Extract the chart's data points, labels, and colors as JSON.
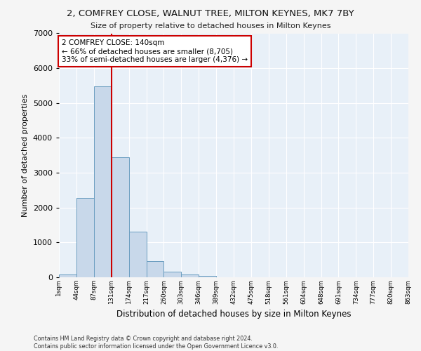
{
  "title": "2, COMFREY CLOSE, WALNUT TREE, MILTON KEYNES, MK7 7BY",
  "subtitle": "Size of property relative to detached houses in Milton Keynes",
  "xlabel": "Distribution of detached houses by size in Milton Keynes",
  "ylabel": "Number of detached properties",
  "bar_values": [
    75,
    2280,
    5480,
    3440,
    1310,
    470,
    155,
    80,
    50,
    0,
    0,
    0,
    0,
    0,
    0,
    0,
    0,
    0,
    0
  ],
  "bar_color": "#c8d8ea",
  "bar_edge_color": "#6a9dc0",
  "x_labels": [
    "1sqm",
    "44sqm",
    "87sqm",
    "131sqm",
    "174sqm",
    "217sqm",
    "260sqm",
    "303sqm",
    "346sqm",
    "389sqm",
    "432sqm",
    "475sqm",
    "518sqm",
    "561sqm",
    "604sqm",
    "648sqm",
    "691sqm",
    "734sqm",
    "777sqm",
    "820sqm",
    "863sqm"
  ],
  "ylim": [
    0,
    7000
  ],
  "yticks": [
    0,
    1000,
    2000,
    3000,
    4000,
    5000,
    6000,
    7000
  ],
  "vline_color": "#cc0000",
  "annotation_line1": "2 COMFREY CLOSE: 140sqm",
  "annotation_line2": "← 66% of detached houses are smaller (8,705)",
  "annotation_line3": "33% of semi-detached houses are larger (4,376) →",
  "annotation_box_color": "#ffffff",
  "annotation_box_edge": "#cc0000",
  "footer_text": "Contains HM Land Registry data © Crown copyright and database right 2024.\nContains public sector information licensed under the Open Government Licence v3.0.",
  "background_color": "#e8f0f8",
  "fig_background": "#f5f5f5",
  "grid_color": "#ffffff"
}
